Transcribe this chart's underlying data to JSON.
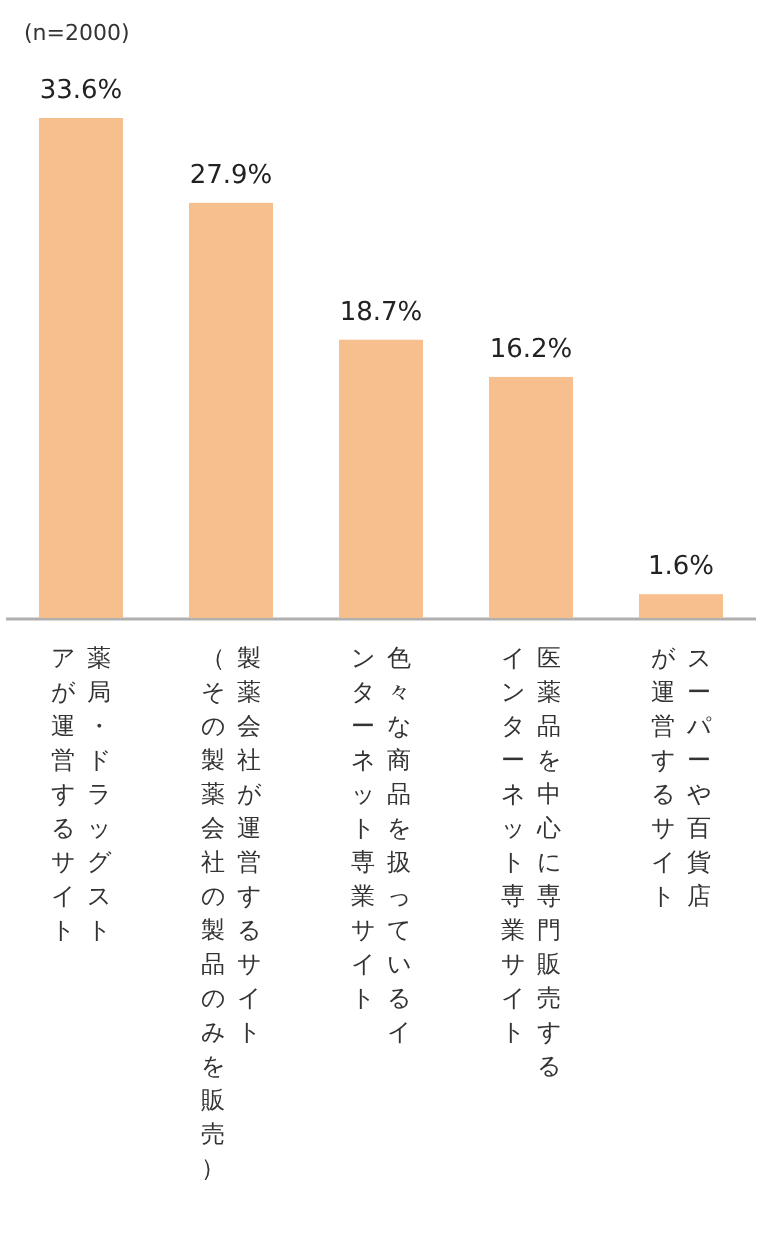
{
  "chart_data": {
    "type": "bar",
    "categories": [
      "薬局・ドラッグストアが運営するサイト",
      "製薬会社が運営するサイト（その製薬会社の製品のみを販売）",
      "色々な商品を扱っているインターネット専業サイト",
      "医薬品を中心に専門販売するインターネット専業サイト",
      "スーパーや百貨店が運営するサイト"
    ],
    "values": [
      33.6,
      27.9,
      18.7,
      16.2,
      1.6
    ],
    "value_labels": [
      "33.6%",
      "27.9%",
      "18.7%",
      "16.2%",
      "1.6%"
    ],
    "color": "#f8bf8e",
    "annotations": [
      "(n=2000)"
    ]
  }
}
